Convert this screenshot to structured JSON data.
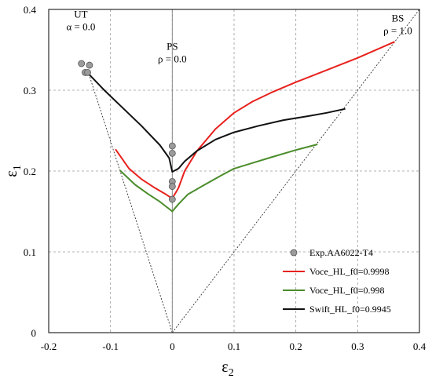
{
  "chart_data": {
    "type": "line",
    "xlabel": "ε",
    "xlabel_sub": "2",
    "ylabel": "ε",
    "ylabel_sub": "1",
    "xlim": [
      -0.2,
      0.4
    ],
    "ylim": [
      0,
      0.4
    ],
    "xticks": [
      "-0.2",
      "-0.1",
      "0",
      "0.1",
      "0.2",
      "0.3",
      "0.4"
    ],
    "xtick_values": [
      -0.2,
      -0.1,
      0,
      0.1,
      0.2,
      0.3,
      0.4
    ],
    "yticks": [
      "0",
      "0.1",
      "0.2",
      "0.3",
      "0.4"
    ],
    "ytick_values": [
      0,
      0.1,
      0.2,
      0.3,
      0.4
    ],
    "grid": true,
    "legend_position": "bottom-right",
    "reference_lines": [
      {
        "name": "UT",
        "x": [
          -0.135,
          0.0
        ],
        "y": [
          0.32,
          0.0
        ],
        "style": "dotted"
      },
      {
        "name": "BS",
        "x": [
          0.0,
          0.4
        ],
        "y": [
          0.0,
          0.4
        ],
        "style": "dotted"
      },
      {
        "name": "PS",
        "x": [
          0.0,
          0.0
        ],
        "y": [
          0.0,
          0.4
        ],
        "style": "solid-gray"
      }
    ],
    "annotations": [
      {
        "id": "ut",
        "line1": "UT",
        "line2": "α = 0.0",
        "x": -0.148,
        "y": 0.39
      },
      {
        "id": "ps",
        "line1": "PS",
        "line2": "ρ = 0.0",
        "x": 0.0,
        "y": 0.35
      },
      {
        "id": "bs",
        "line1": "BS",
        "line2": "ρ = 1.0",
        "x": 0.365,
        "y": 0.385
      }
    ],
    "series": [
      {
        "name": "Exp.AA6022-T4",
        "kind": "scatter",
        "color": "#8c8c8c",
        "x": [
          -0.147,
          -0.134,
          -0.141,
          -0.137,
          0.0,
          0.0,
          0.0,
          0.0,
          0.0
        ],
        "y": [
          0.333,
          0.331,
          0.322,
          0.322,
          0.231,
          0.222,
          0.187,
          0.181,
          0.165
        ]
      },
      {
        "name": "Voce_HL_f0=0.9998",
        "kind": "line",
        "color": "#e8211d",
        "x": [
          -0.092,
          -0.07,
          -0.05,
          -0.03,
          -0.01,
          0.0,
          0.01,
          0.02,
          0.04,
          0.07,
          0.1,
          0.13,
          0.16,
          0.2,
          0.25,
          0.3,
          0.36
        ],
        "y": [
          0.227,
          0.203,
          0.19,
          0.18,
          0.171,
          0.166,
          0.179,
          0.2,
          0.225,
          0.252,
          0.272,
          0.286,
          0.297,
          0.31,
          0.325,
          0.34,
          0.36
        ]
      },
      {
        "name": "Voce_HL_f0=0.998",
        "kind": "line",
        "color": "#4a8c2a",
        "x": [
          -0.085,
          -0.06,
          -0.04,
          -0.02,
          -0.005,
          0.0,
          0.01,
          0.025,
          0.05,
          0.08,
          0.1,
          0.13,
          0.16,
          0.2,
          0.235
        ],
        "y": [
          0.201,
          0.183,
          0.172,
          0.162,
          0.153,
          0.15,
          0.159,
          0.171,
          0.182,
          0.195,
          0.203,
          0.21,
          0.217,
          0.226,
          0.233
        ]
      },
      {
        "name": "Swift_HL_f0=0.9945",
        "kind": "line",
        "color": "#111111",
        "x": [
          -0.135,
          -0.11,
          -0.08,
          -0.05,
          -0.02,
          -0.005,
          0.0,
          0.01,
          0.02,
          0.04,
          0.07,
          0.1,
          0.14,
          0.18,
          0.22,
          0.25,
          0.28
        ],
        "y": [
          0.32,
          0.3,
          0.278,
          0.256,
          0.232,
          0.216,
          0.199,
          0.203,
          0.212,
          0.225,
          0.239,
          0.248,
          0.256,
          0.263,
          0.268,
          0.272,
          0.277
        ]
      }
    ]
  }
}
